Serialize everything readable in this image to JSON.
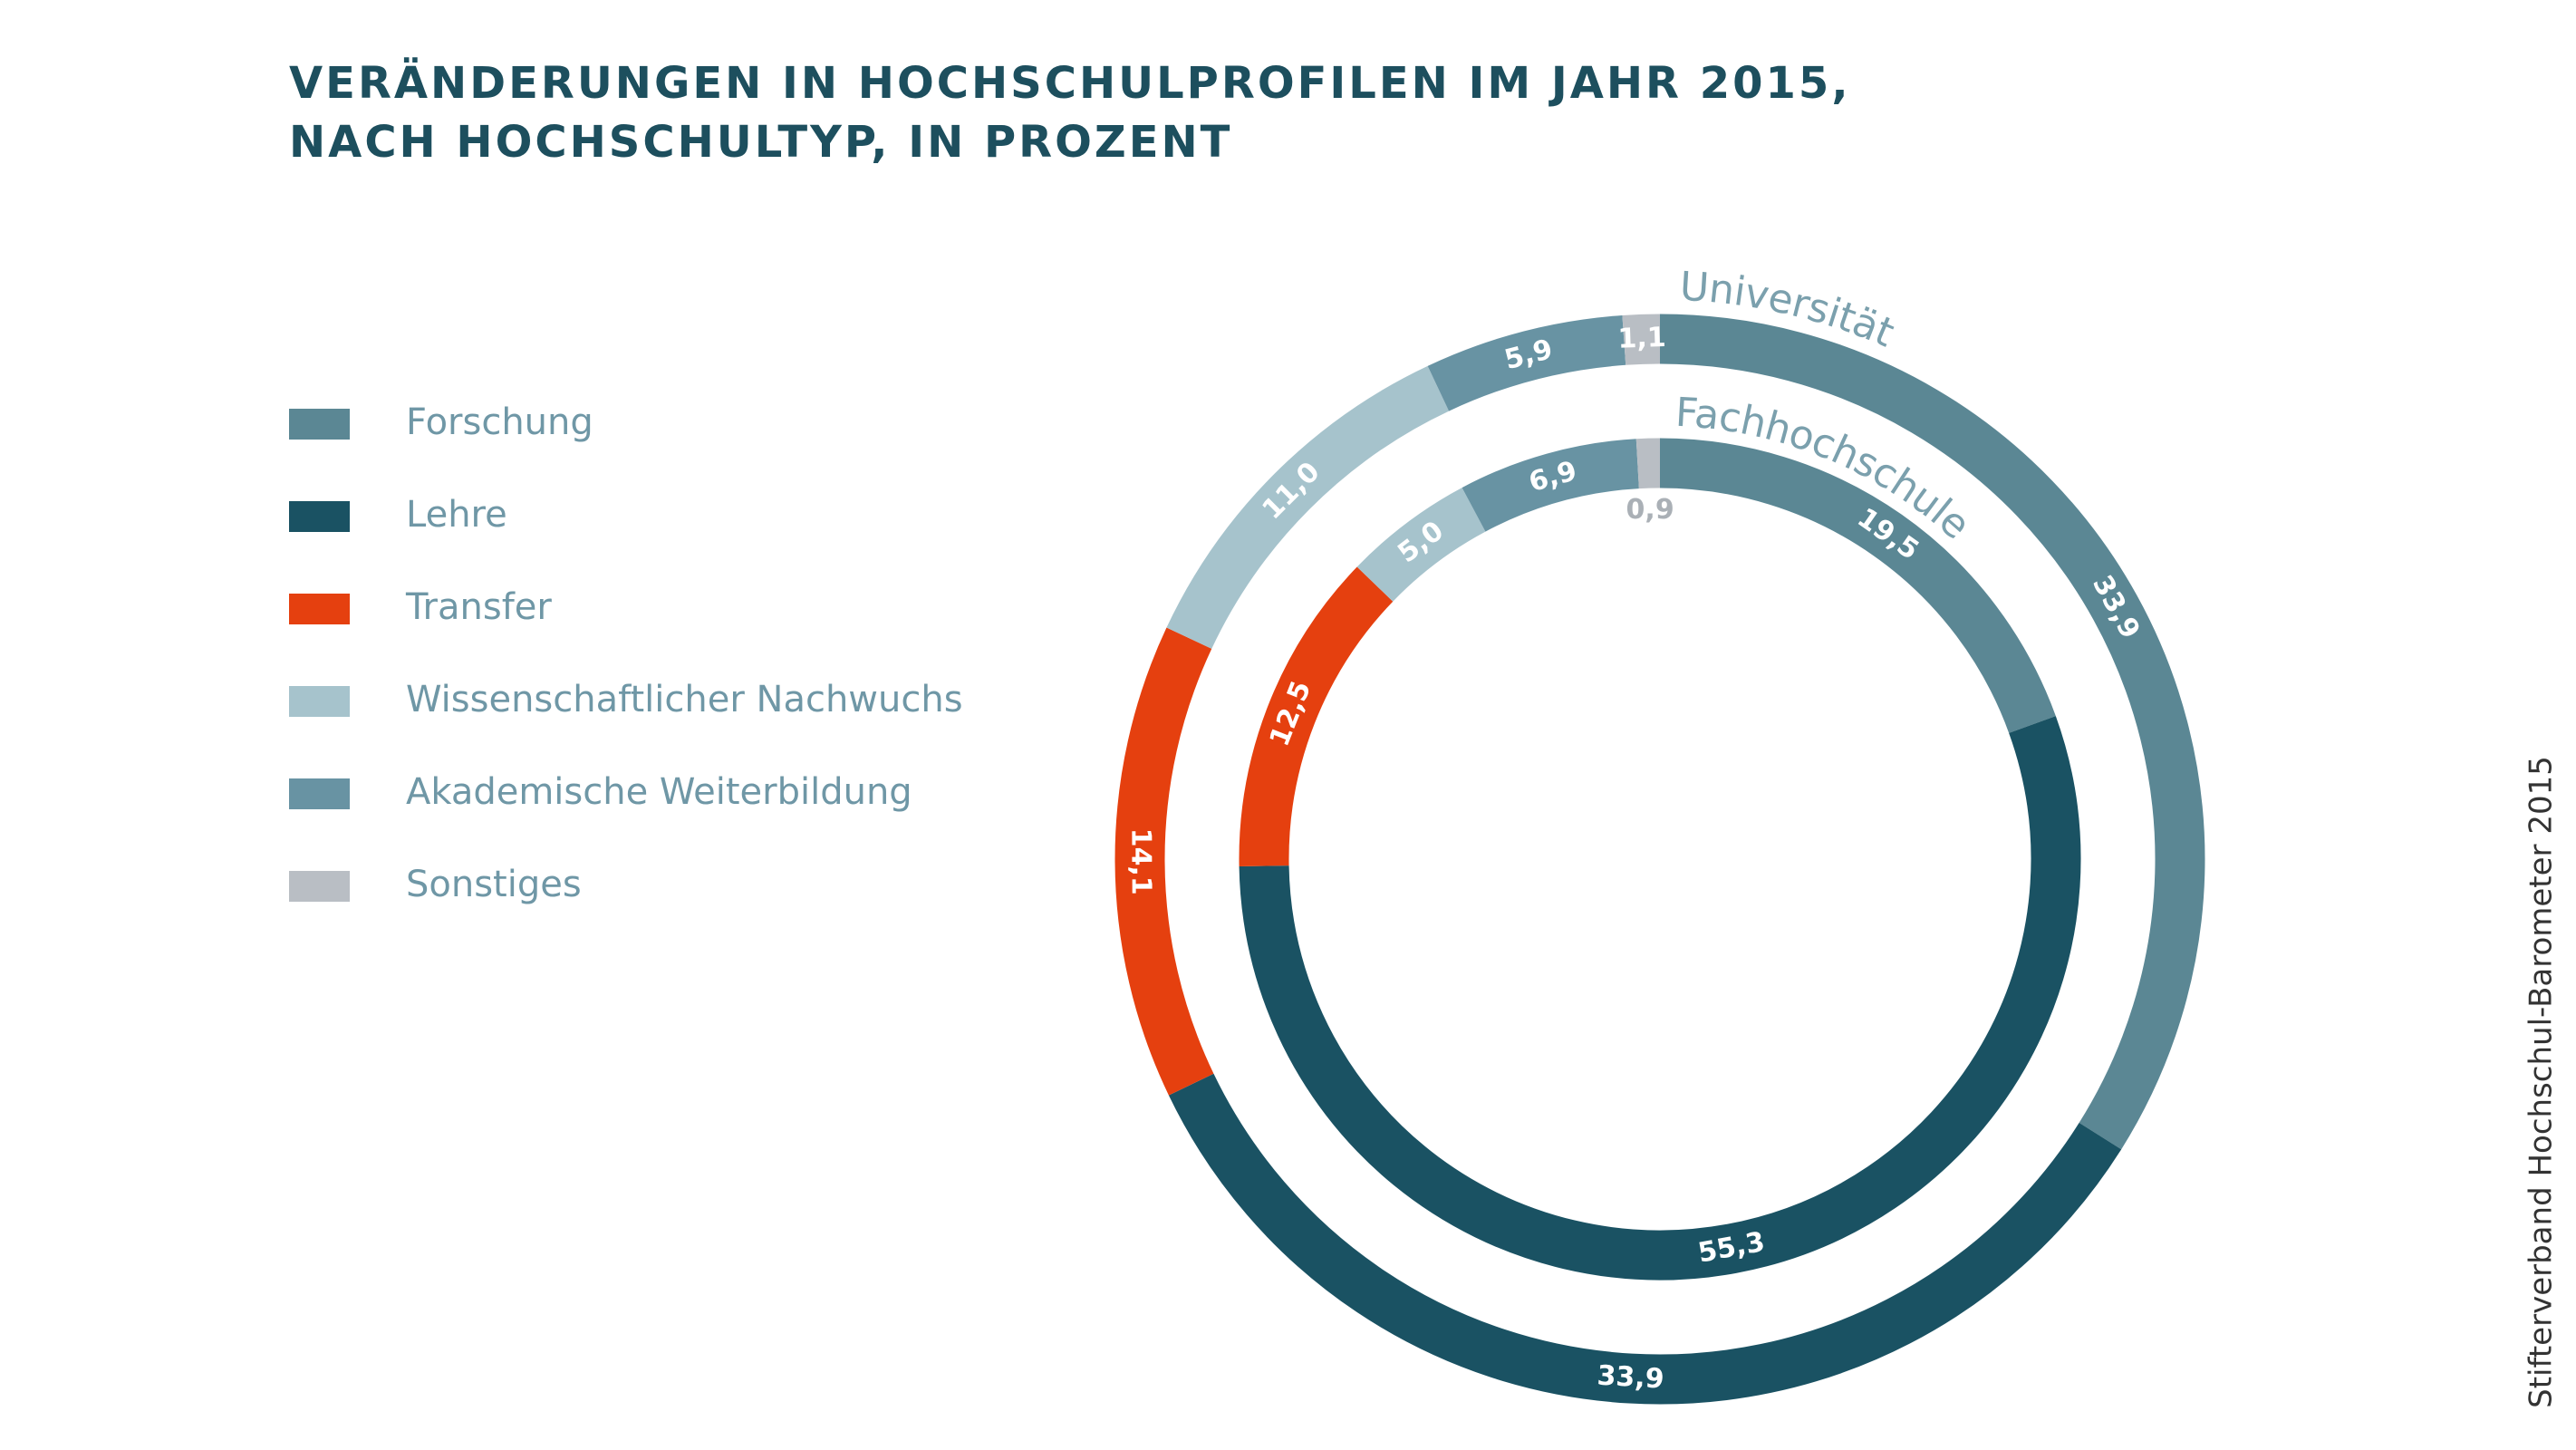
{
  "chart_data": {
    "type": "donut",
    "title": [
      "VERÄNDERUNGEN IN HOCHSCHULPROFILEN IM JAHR 2015,",
      "NACH HOCHSCHULTYP, IN PROZENT"
    ],
    "source": "Stifterverband Hochschul-Barometer 2015",
    "categories": [
      "Forschung",
      "Lehre",
      "Transfer",
      "Wissenschaftlicher Nachwuchs",
      "Akademische Weiterbildung",
      "Sonstiges"
    ],
    "colors": [
      "#5b8794",
      "#1a5263",
      "#e5400f",
      "#a6c3cc",
      "#6893a3",
      "#b9bec4"
    ],
    "series": [
      {
        "name": "Universität",
        "values": [
          33.9,
          33.9,
          14.1,
          11.0,
          5.9,
          1.1
        ],
        "value_labels": [
          "33,9",
          "33,9",
          "14,1",
          "11,0",
          "5,9",
          "1,1"
        ]
      },
      {
        "name": "Fachhochschule",
        "values": [
          19.5,
          55.3,
          12.5,
          5.0,
          6.9,
          0.9
        ],
        "value_labels": [
          "19,5",
          "55,3",
          "12,5",
          "5,0",
          "6,9",
          "0,9"
        ]
      }
    ]
  }
}
